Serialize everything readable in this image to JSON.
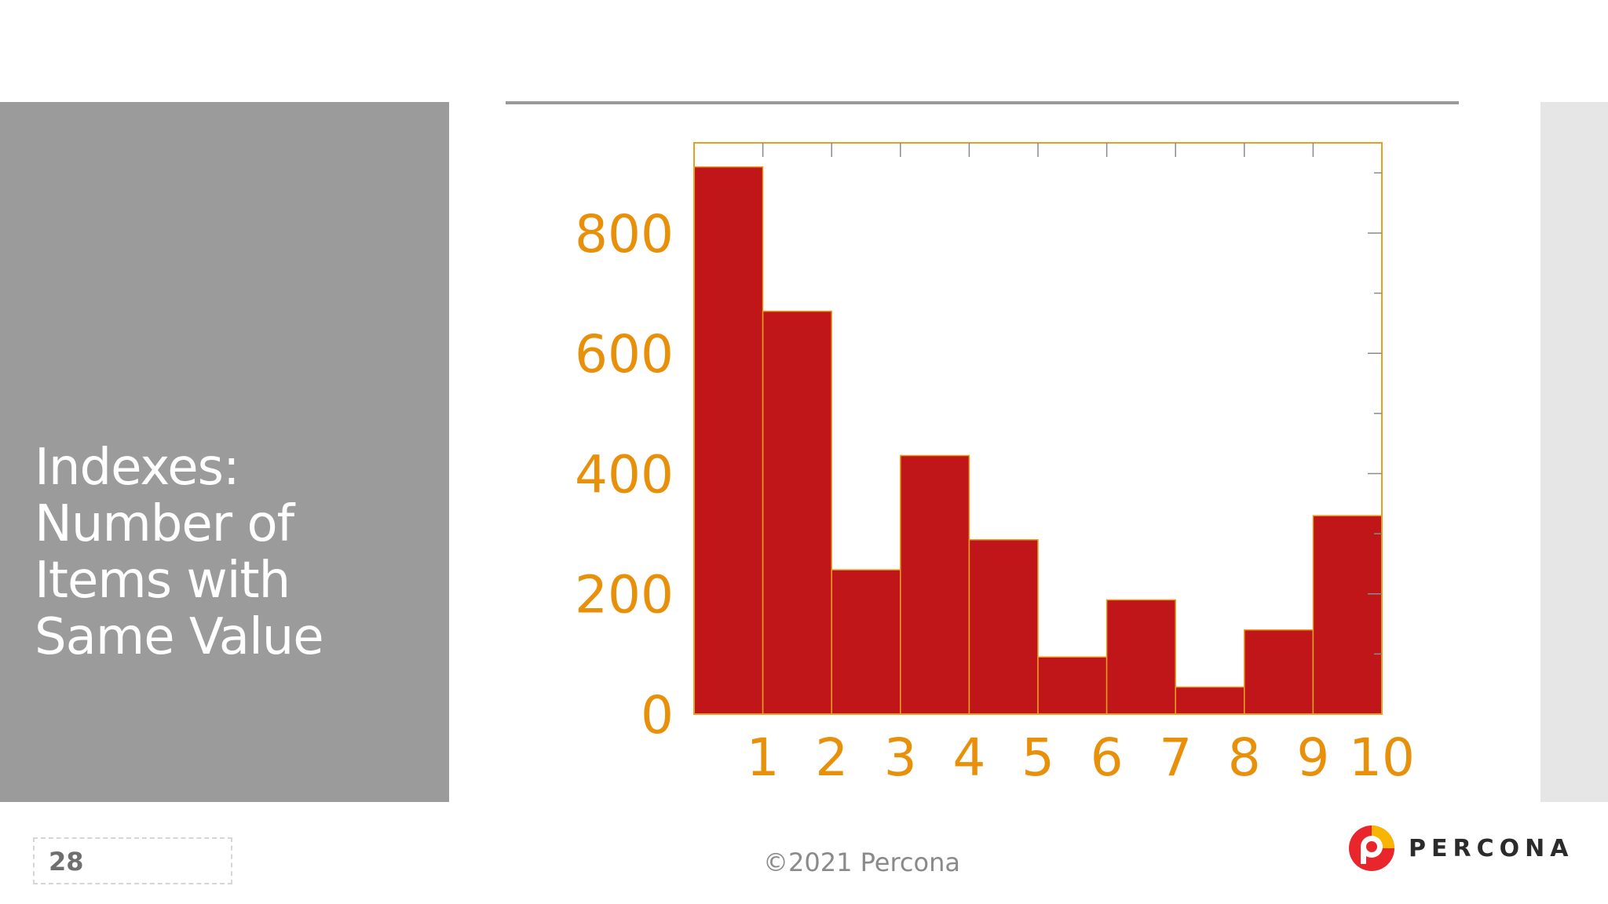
{
  "slide": {
    "title": "Indexes: Number of Items with Same Value",
    "page_number": "28",
    "copyright": "©2021 Percona",
    "brand": "PERCONA"
  },
  "colors": {
    "bar_fill": "#c0161a",
    "axis_text": "#e8900a",
    "frame": "#e8a020",
    "panel_gray": "#9b9b9b"
  },
  "chart_data": {
    "type": "bar",
    "title": "",
    "xlabel": "",
    "ylabel": "",
    "categories": [
      "1",
      "2",
      "3",
      "4",
      "5",
      "6",
      "7",
      "8",
      "9",
      "10"
    ],
    "values": [
      910,
      670,
      240,
      430,
      290,
      95,
      190,
      45,
      140,
      330
    ],
    "x_tick_labels": [
      "1",
      "2",
      "3",
      "4",
      "5",
      "6",
      "7",
      "8",
      "9",
      "10"
    ],
    "y_tick_labels": [
      "0",
      "200",
      "400",
      "600",
      "800"
    ],
    "y_ticks": [
      0,
      200,
      400,
      600,
      800
    ],
    "ylim": [
      0,
      950
    ],
    "grid": false,
    "legend": "none"
  }
}
